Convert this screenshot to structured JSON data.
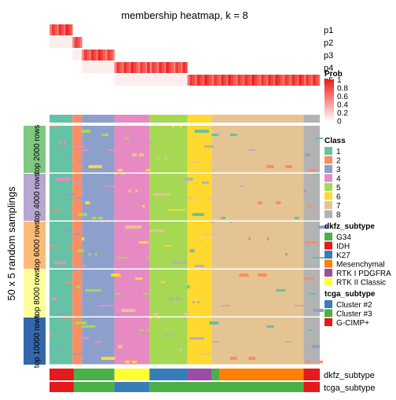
{
  "chart_data": {
    "type": "heatmap",
    "title": "membership heatmap, k = 8",
    "ylabel": "50 x 5 random samplings",
    "prob_rows": [
      "p1",
      "p2",
      "p3",
      "p4",
      "p5"
    ],
    "row_groups": [
      {
        "label": "top 2000 rows",
        "color": "#7ec880"
      },
      {
        "label": "top 4000 rows",
        "color": "#b7a6cf"
      },
      {
        "label": "top 6000 rows",
        "color": "#fdbb7a"
      },
      {
        "label": "top 8000 rows",
        "color": "#ffff99"
      },
      {
        "label": "top 10000 rows",
        "color": "#3366aa"
      }
    ],
    "class_blocks": [
      {
        "class": "1",
        "from": 0.0,
        "to": 0.085
      },
      {
        "class": "2",
        "from": 0.085,
        "to": 0.12
      },
      {
        "class": "3",
        "from": 0.12,
        "to": 0.24
      },
      {
        "class": "4",
        "from": 0.24,
        "to": 0.37
      },
      {
        "class": "5",
        "from": 0.37,
        "to": 0.51
      },
      {
        "class": "6",
        "from": 0.51,
        "to": 0.6
      },
      {
        "class": "7",
        "from": 0.6,
        "to": 0.94
      },
      {
        "class": "8",
        "from": 0.94,
        "to": 1.0
      }
    ],
    "legends": {
      "prob": {
        "title": "Prob",
        "ticks": [
          "1",
          "0.8",
          "0.6",
          "0.4",
          "0.2",
          "0"
        ],
        "low": "#ffffff",
        "high": "#ee1c16"
      },
      "class": {
        "title": "Class",
        "items": [
          {
            "label": "1",
            "color": "#66c2a5"
          },
          {
            "label": "2",
            "color": "#fc8d62"
          },
          {
            "label": "3",
            "color": "#8da0cb"
          },
          {
            "label": "4",
            "color": "#e78ac3"
          },
          {
            "label": "5",
            "color": "#a6d854"
          },
          {
            "label": "6",
            "color": "#ffd92f"
          },
          {
            "label": "7",
            "color": "#e5c494"
          },
          {
            "label": "8",
            "color": "#b3b3b3"
          }
        ]
      },
      "dkfz_subtype": {
        "title": "dkfz_subtype",
        "items": [
          {
            "label": "G34",
            "color": "#4daf4a"
          },
          {
            "label": "IDH",
            "color": "#e41a1c"
          },
          {
            "label": "K27",
            "color": "#377eb8"
          },
          {
            "label": "Mesenchymal",
            "color": "#ff7f00"
          },
          {
            "label": "RTK I PDGFRA",
            "color": "#984ea3"
          },
          {
            "label": "RTK II Classic",
            "color": "#ffff33"
          }
        ]
      },
      "tcga_subtype": {
        "title": "tcga_subtype",
        "items": [
          {
            "label": "Cluster #2",
            "color": "#377eb8"
          },
          {
            "label": "Cluster #3",
            "color": "#4daf4a"
          },
          {
            "label": "G-CIMP+",
            "color": "#e41a1c"
          }
        ]
      }
    },
    "annotations": {
      "dkfz_label": "dkfz_subtype",
      "tcga_label": "tcga_subtype",
      "dkfz_segments": [
        {
          "subtype": "IDH",
          "from": 0.0,
          "to": 0.09
        },
        {
          "subtype": "G34",
          "from": 0.09,
          "to": 0.24
        },
        {
          "subtype": "RTK II Classic",
          "from": 0.24,
          "to": 0.37
        },
        {
          "subtype": "K27",
          "from": 0.37,
          "to": 0.51
        },
        {
          "subtype": "RTK I PDGFRA",
          "from": 0.51,
          "to": 0.6
        },
        {
          "subtype": "G34",
          "from": 0.6,
          "to": 0.63
        },
        {
          "subtype": "Mesenchymal",
          "from": 0.63,
          "to": 0.94
        },
        {
          "subtype": "IDH",
          "from": 0.94,
          "to": 1.0
        }
      ],
      "tcga_segments": [
        {
          "subtype": "G-CIMP+",
          "from": 0.0,
          "to": 0.09
        },
        {
          "subtype": "Cluster #3",
          "from": 0.09,
          "to": 0.24
        },
        {
          "subtype": "Cluster #2",
          "from": 0.24,
          "to": 0.37
        },
        {
          "subtype": "Cluster #3",
          "from": 0.37,
          "to": 0.94
        },
        {
          "subtype": "G-CIMP+",
          "from": 0.94,
          "to": 1.0
        }
      ]
    }
  }
}
